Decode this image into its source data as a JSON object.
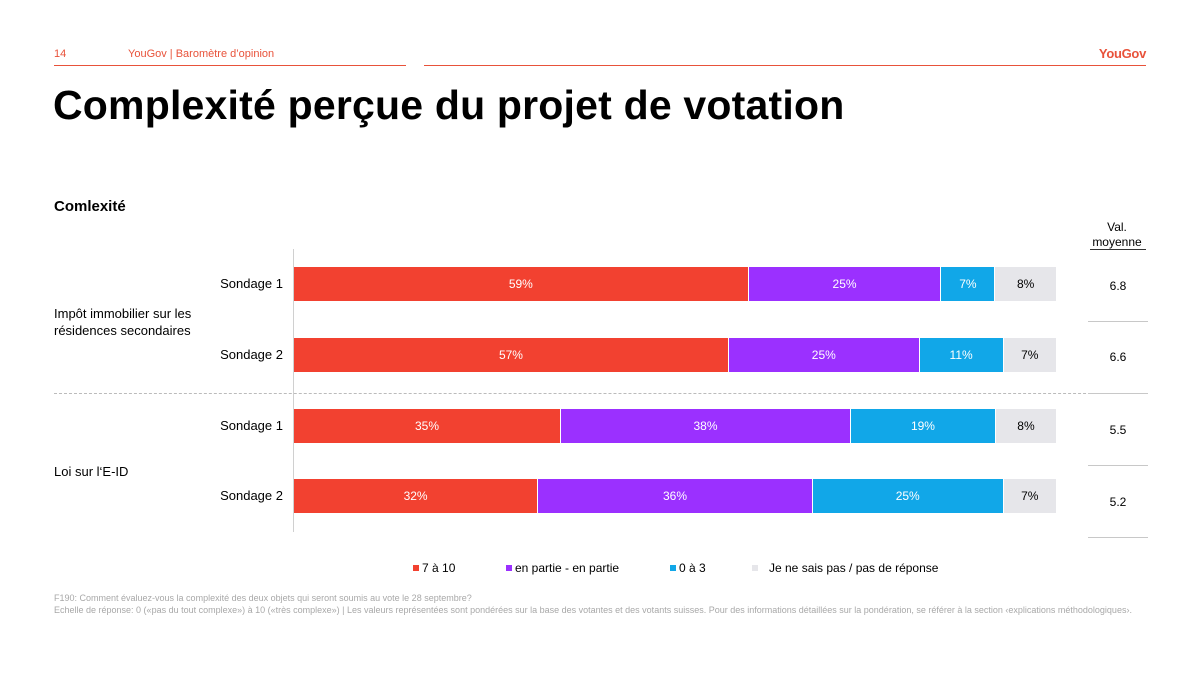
{
  "header": {
    "page_number": "14",
    "source": "YouGov | Baromètre d’opinion",
    "logo": "YouGov"
  },
  "title": "Complexité perçue du projet de votation",
  "subtitle": "Comlexité",
  "avg_header": "Val. moyenne",
  "groups": [
    {
      "label": "Impôt immobilier sur les résidences secondaires"
    },
    {
      "label": "Loi sur l‘E-ID"
    }
  ],
  "colors": {
    "7 à 10": "#f24130",
    "en partie - en partie": "#9b30ff",
    "0 à 3": "#11a7e8",
    "Je ne sais pas / pas de réponse": "#e6e6ea",
    "accent": "#e8523a"
  },
  "chart_data": {
    "type": "bar",
    "orientation": "horizontal",
    "stacked": true,
    "percent": true,
    "categories": [
      "Impôt immobilier sur les résidences secondaires – Sondage 1",
      "Impôt immobilier sur les résidences secondaires – Sondage 2",
      "Loi sur l‘E-ID – Sondage 1",
      "Loi sur l‘E-ID – Sondage 2"
    ],
    "rows": [
      {
        "group": 0,
        "label": "Sondage 1",
        "values": [
          59,
          25,
          7,
          8
        ],
        "labels": [
          "59%",
          "25%",
          "7%",
          "8%"
        ],
        "avg": "6.8"
      },
      {
        "group": 0,
        "label": "Sondage 2",
        "values": [
          57,
          25,
          11,
          7
        ],
        "labels": [
          "57%",
          "25%",
          "11%",
          "7%"
        ],
        "avg": "6.6"
      },
      {
        "group": 1,
        "label": "Sondage 1",
        "values": [
          35,
          38,
          19,
          8
        ],
        "labels": [
          "35%",
          "38%",
          "19%",
          "8%"
        ],
        "avg": "5.5"
      },
      {
        "group": 1,
        "label": "Sondage 2",
        "values": [
          32,
          36,
          25,
          7
        ],
        "labels": [
          "32%",
          "36%",
          "25%",
          "7%"
        ],
        "avg": "5.2"
      }
    ],
    "series": [
      {
        "name": "7 à 10",
        "values": [
          59,
          57,
          35,
          32
        ]
      },
      {
        "name": "en partie - en partie",
        "values": [
          25,
          25,
          38,
          36
        ]
      },
      {
        "name": "0 à 3",
        "values": [
          7,
          11,
          19,
          25
        ]
      },
      {
        "name": "Je ne sais pas / pas de réponse",
        "values": [
          8,
          7,
          8,
          7
        ]
      }
    ],
    "xlim": [
      0,
      100
    ],
    "legend_position": "bottom",
    "grid": false
  },
  "footnote": [
    "F190: Comment évaluez-vous la complexité des deux objets qui seront soumis au vote le 28 septembre?",
    "Echelle de réponse: 0 («pas du tout complexe») à 10 («très complexe») | Les valeurs représentées sont pondérées sur la base des votantes et des votants suisses. Pour des informations détaillées sur la pondération, se référer à la section ‹explications méthodologiques›."
  ]
}
